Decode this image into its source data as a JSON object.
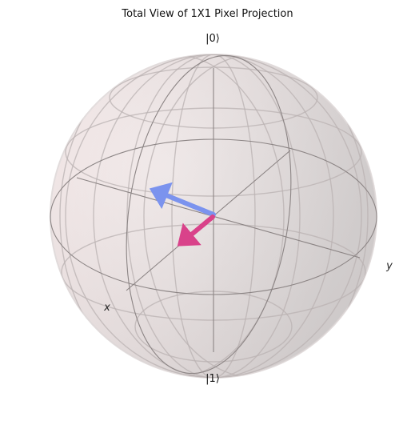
{
  "figure": {
    "title": "Total View of 1X1 Pixel Projection"
  },
  "bloch_sphere": {
    "labels": {
      "north": "|0⟩",
      "south": "|1⟩",
      "x_axis": "x",
      "y_axis": "y"
    },
    "colors": {
      "sphere_fill_left": "#f7e8e8",
      "sphere_fill_right": "#d7d3d3",
      "wireframe": "#8c8585",
      "vector_1": "#7b93ee",
      "vector_2": "#d9428a"
    },
    "vectors": [
      {
        "name": "state-vector-1",
        "color_key": "vector_1"
      },
      {
        "name": "state-vector-2",
        "color_key": "vector_2"
      }
    ]
  }
}
